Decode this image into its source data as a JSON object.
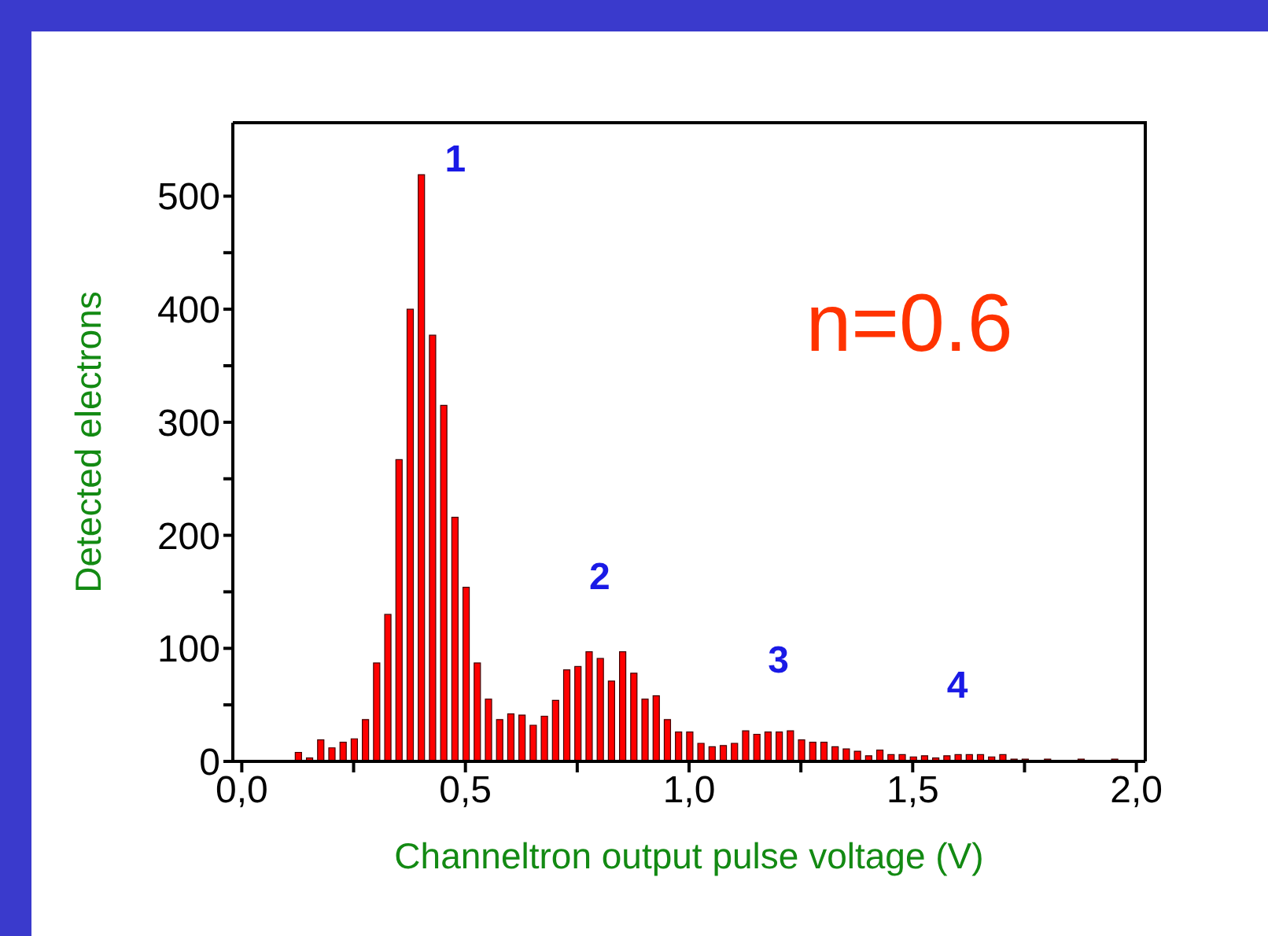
{
  "chart_data": {
    "type": "histogram",
    "xlabel": "Channeltron output pulse voltage (V)",
    "ylabel": "Detected electrons",
    "color": "#ff0000",
    "bins": [
      0.1125,
      0.1375,
      0.1625,
      0.1875,
      0.2125,
      0.2375,
      0.2625,
      0.2875,
      0.3125,
      0.3375,
      0.3625,
      0.3875,
      0.4125,
      0.4375,
      0.4625,
      0.4875,
      0.5125,
      0.5375,
      0.5625,
      0.5875,
      0.6125,
      0.6375,
      0.6625,
      0.6875,
      0.7125,
      0.7375,
      0.7625,
      0.7875,
      0.8125,
      0.8375,
      0.8625,
      0.8875,
      0.9125,
      0.9375,
      0.9625,
      0.9875,
      1.0125,
      1.0375,
      1.0625,
      1.0875,
      1.1125,
      1.1375,
      1.1625,
      1.1875,
      1.2125,
      1.2375,
      1.2625,
      1.2875,
      1.3125,
      1.3375,
      1.3625,
      1.3875,
      1.4125,
      1.4375,
      1.4625,
      1.4875,
      1.5125,
      1.5375,
      1.5625,
      1.5875,
      1.6125,
      1.6375,
      1.6625,
      1.6875,
      1.7125,
      1.7375,
      1.7625,
      1.7875,
      1.8125,
      1.8375,
      1.8625,
      1.8875,
      1.9125,
      1.9375,
      1.9625,
      1.9875
    ],
    "values": [
      8,
      3,
      19,
      12,
      17,
      20,
      37,
      87,
      130,
      267,
      400,
      519,
      377,
      315,
      216,
      154,
      87,
      55,
      37,
      42,
      41,
      32,
      40,
      54,
      81,
      84,
      97,
      91,
      71,
      97,
      78,
      55,
      58,
      37,
      26,
      26,
      16,
      13,
      14,
      16,
      27,
      24,
      26,
      26,
      27,
      19,
      17,
      17,
      13,
      11,
      9,
      5,
      10,
      6,
      6,
      4,
      5,
      3,
      5,
      6,
      6,
      6,
      4,
      6,
      2,
      2,
      1,
      2,
      1,
      1,
      2,
      1,
      1,
      2,
      1
    ],
    "xlim": [
      -0.02,
      2.02
    ],
    "ylim": [
      0,
      565
    ],
    "xticks": [
      {
        "value": 0,
        "label": "0,0"
      },
      {
        "value": 0.25,
        "label": null
      },
      {
        "value": 0.5,
        "label": "0,5"
      },
      {
        "value": 0.75,
        "label": null
      },
      {
        "value": 1,
        "label": "1,0"
      },
      {
        "value": 1.25,
        "label": null
      },
      {
        "value": 1.5,
        "label": "1,5"
      },
      {
        "value": 1.75,
        "label": null
      },
      {
        "value": 2,
        "label": "2,0"
      }
    ],
    "yticks": [
      0,
      {
        "value": 50,
        "label": null
      },
      100,
      {
        "value": 150,
        "label": null
      },
      200,
      {
        "value": 250,
        "label": null
      },
      300,
      {
        "value": 350,
        "label": null
      },
      400,
      {
        "value": 450,
        "label": null
      },
      500
    ],
    "annotations": [
      {
        "text": "1",
        "x": 0.4,
        "y": 519
      },
      {
        "text": "2",
        "x": 0.8,
        "y": 97
      },
      {
        "text": "3",
        "x": 1.2,
        "y": 26
      },
      {
        "text": "4",
        "x": 1.6,
        "y": 6
      },
      "n=0.6"
    ]
  }
}
